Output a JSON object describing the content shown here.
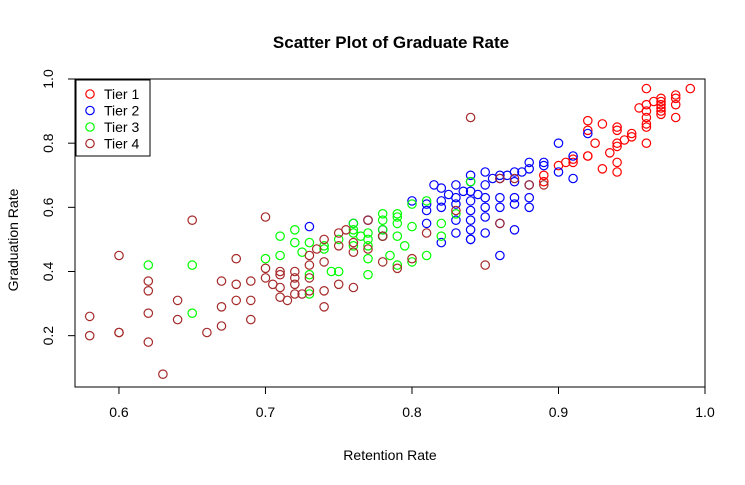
{
  "chart_data": {
    "type": "scatter",
    "title": "Scatter Plot of Graduate Rate",
    "xlabel": "Retention Rate",
    "ylabel": "Graduation Rate",
    "xlim": [
      0.57,
      1.0
    ],
    "ylim": [
      0.04,
      1.0
    ],
    "xticks": [
      "0.6",
      "0.7",
      "0.8",
      "0.9",
      "1.0"
    ],
    "yticks": [
      "0.2",
      "0.4",
      "0.6",
      "0.8",
      "1.0"
    ],
    "grid": false,
    "legend_position": "top-left",
    "series": [
      {
        "name": "Tier 1",
        "color": "#ff0000",
        "points": [
          [
            0.89,
            0.68
          ],
          [
            0.89,
            0.7
          ],
          [
            0.9,
            0.73
          ],
          [
            0.91,
            0.74
          ],
          [
            0.91,
            0.75
          ],
          [
            0.92,
            0.76
          ],
          [
            0.92,
            0.76
          ],
          [
            0.92,
            0.84
          ],
          [
            0.92,
            0.87
          ],
          [
            0.93,
            0.72
          ],
          [
            0.93,
            0.86
          ],
          [
            0.94,
            0.71
          ],
          [
            0.94,
            0.74
          ],
          [
            0.94,
            0.79
          ],
          [
            0.94,
            0.8
          ],
          [
            0.94,
            0.84
          ],
          [
            0.94,
            0.85
          ],
          [
            0.95,
            0.82
          ],
          [
            0.95,
            0.83
          ],
          [
            0.96,
            0.8
          ],
          [
            0.96,
            0.85
          ],
          [
            0.96,
            0.86
          ],
          [
            0.96,
            0.88
          ],
          [
            0.96,
            0.9
          ],
          [
            0.96,
            0.92
          ],
          [
            0.96,
            0.97
          ],
          [
            0.97,
            0.89
          ],
          [
            0.97,
            0.91
          ],
          [
            0.97,
            0.92
          ],
          [
            0.97,
            0.93
          ],
          [
            0.97,
            0.94
          ],
          [
            0.98,
            0.88
          ],
          [
            0.98,
            0.92
          ],
          [
            0.98,
            0.94
          ],
          [
            0.99,
            0.97
          ],
          [
            0.98,
            0.95
          ],
          [
            0.965,
            0.93
          ],
          [
            0.955,
            0.91
          ],
          [
            0.97,
            0.9
          ],
          [
            0.935,
            0.77
          ],
          [
            0.925,
            0.8
          ],
          [
            0.905,
            0.74
          ],
          [
            0.945,
            0.81
          ]
        ]
      },
      {
        "name": "Tier 2",
        "color": "#0000ff",
        "points": [
          [
            0.73,
            0.54
          ],
          [
            0.76,
            0.55
          ],
          [
            0.77,
            0.56
          ],
          [
            0.78,
            0.51
          ],
          [
            0.78,
            0.53
          ],
          [
            0.8,
            0.62
          ],
          [
            0.81,
            0.55
          ],
          [
            0.81,
            0.59
          ],
          [
            0.81,
            0.61
          ],
          [
            0.82,
            0.6
          ],
          [
            0.82,
            0.62
          ],
          [
            0.82,
            0.66
          ],
          [
            0.82,
            0.49
          ],
          [
            0.83,
            0.52
          ],
          [
            0.83,
            0.56
          ],
          [
            0.83,
            0.61
          ],
          [
            0.83,
            0.63
          ],
          [
            0.83,
            0.67
          ],
          [
            0.84,
            0.5
          ],
          [
            0.84,
            0.5
          ],
          [
            0.84,
            0.53
          ],
          [
            0.84,
            0.56
          ],
          [
            0.84,
            0.59
          ],
          [
            0.84,
            0.62
          ],
          [
            0.84,
            0.65
          ],
          [
            0.84,
            0.68
          ],
          [
            0.84,
            0.7
          ],
          [
            0.85,
            0.52
          ],
          [
            0.85,
            0.57
          ],
          [
            0.85,
            0.6
          ],
          [
            0.85,
            0.63
          ],
          [
            0.85,
            0.67
          ],
          [
            0.85,
            0.71
          ],
          [
            0.86,
            0.55
          ],
          [
            0.86,
            0.6
          ],
          [
            0.86,
            0.63
          ],
          [
            0.86,
            0.69
          ],
          [
            0.86,
            0.7
          ],
          [
            0.86,
            0.45
          ],
          [
            0.87,
            0.53
          ],
          [
            0.87,
            0.61
          ],
          [
            0.87,
            0.63
          ],
          [
            0.87,
            0.68
          ],
          [
            0.87,
            0.71
          ],
          [
            0.88,
            0.6
          ],
          [
            0.88,
            0.63
          ],
          [
            0.88,
            0.67
          ],
          [
            0.88,
            0.72
          ],
          [
            0.88,
            0.74
          ],
          [
            0.89,
            0.73
          ],
          [
            0.89,
            0.74
          ],
          [
            0.9,
            0.71
          ],
          [
            0.9,
            0.8
          ],
          [
            0.91,
            0.69
          ],
          [
            0.91,
            0.76
          ],
          [
            0.92,
            0.83
          ],
          [
            0.835,
            0.65
          ],
          [
            0.845,
            0.64
          ],
          [
            0.865,
            0.7
          ],
          [
            0.875,
            0.71
          ],
          [
            0.855,
            0.69
          ],
          [
            0.815,
            0.67
          ],
          [
            0.825,
            0.64
          ]
        ]
      },
      {
        "name": "Tier 3",
        "color": "#00ff00",
        "points": [
          [
            0.62,
            0.42
          ],
          [
            0.65,
            0.27
          ],
          [
            0.65,
            0.42
          ],
          [
            0.7,
            0.44
          ],
          [
            0.71,
            0.45
          ],
          [
            0.71,
            0.51
          ],
          [
            0.72,
            0.49
          ],
          [
            0.72,
            0.53
          ],
          [
            0.73,
            0.33
          ],
          [
            0.73,
            0.39
          ],
          [
            0.73,
            0.49
          ],
          [
            0.74,
            0.47
          ],
          [
            0.74,
            0.48
          ],
          [
            0.75,
            0.4
          ],
          [
            0.75,
            0.5
          ],
          [
            0.76,
            0.48
          ],
          [
            0.76,
            0.52
          ],
          [
            0.76,
            0.53
          ],
          [
            0.76,
            0.55
          ],
          [
            0.77,
            0.39
          ],
          [
            0.77,
            0.44
          ],
          [
            0.77,
            0.48
          ],
          [
            0.77,
            0.5
          ],
          [
            0.77,
            0.52
          ],
          [
            0.78,
            0.51
          ],
          [
            0.78,
            0.53
          ],
          [
            0.78,
            0.56
          ],
          [
            0.78,
            0.58
          ],
          [
            0.79,
            0.42
          ],
          [
            0.79,
            0.51
          ],
          [
            0.79,
            0.55
          ],
          [
            0.79,
            0.57
          ],
          [
            0.79,
            0.58
          ],
          [
            0.8,
            0.43
          ],
          [
            0.8,
            0.54
          ],
          [
            0.8,
            0.61
          ],
          [
            0.81,
            0.45
          ],
          [
            0.81,
            0.62
          ],
          [
            0.82,
            0.51
          ],
          [
            0.82,
            0.55
          ],
          [
            0.83,
            0.58
          ],
          [
            0.84,
            0.68
          ],
          [
            0.745,
            0.4
          ],
          [
            0.725,
            0.46
          ],
          [
            0.765,
            0.51
          ],
          [
            0.785,
            0.45
          ],
          [
            0.795,
            0.48
          ]
        ]
      },
      {
        "name": "Tier 4",
        "color": "#a52a2a",
        "points": [
          [
            0.58,
            0.26
          ],
          [
            0.58,
            0.2
          ],
          [
            0.6,
            0.21
          ],
          [
            0.6,
            0.21
          ],
          [
            0.6,
            0.45
          ],
          [
            0.62,
            0.34
          ],
          [
            0.62,
            0.37
          ],
          [
            0.62,
            0.18
          ],
          [
            0.62,
            0.27
          ],
          [
            0.63,
            0.08
          ],
          [
            0.64,
            0.31
          ],
          [
            0.64,
            0.25
          ],
          [
            0.65,
            0.56
          ],
          [
            0.66,
            0.21
          ],
          [
            0.67,
            0.23
          ],
          [
            0.67,
            0.29
          ],
          [
            0.67,
            0.37
          ],
          [
            0.68,
            0.31
          ],
          [
            0.68,
            0.36
          ],
          [
            0.68,
            0.44
          ],
          [
            0.69,
            0.25
          ],
          [
            0.69,
            0.31
          ],
          [
            0.69,
            0.37
          ],
          [
            0.7,
            0.38
          ],
          [
            0.7,
            0.41
          ],
          [
            0.7,
            0.57
          ],
          [
            0.71,
            0.32
          ],
          [
            0.71,
            0.35
          ],
          [
            0.71,
            0.39
          ],
          [
            0.71,
            0.4
          ],
          [
            0.72,
            0.33
          ],
          [
            0.72,
            0.36
          ],
          [
            0.72,
            0.38
          ],
          [
            0.72,
            0.4
          ],
          [
            0.73,
            0.34
          ],
          [
            0.73,
            0.38
          ],
          [
            0.73,
            0.42
          ],
          [
            0.73,
            0.45
          ],
          [
            0.74,
            0.29
          ],
          [
            0.74,
            0.34
          ],
          [
            0.74,
            0.43
          ],
          [
            0.74,
            0.5
          ],
          [
            0.75,
            0.36
          ],
          [
            0.75,
            0.48
          ],
          [
            0.75,
            0.52
          ],
          [
            0.76,
            0.35
          ],
          [
            0.76,
            0.46
          ],
          [
            0.76,
            0.49
          ],
          [
            0.77,
            0.47
          ],
          [
            0.77,
            0.56
          ],
          [
            0.78,
            0.43
          ],
          [
            0.78,
            0.51
          ],
          [
            0.79,
            0.41
          ],
          [
            0.8,
            0.44
          ],
          [
            0.81,
            0.52
          ],
          [
            0.83,
            0.59
          ],
          [
            0.84,
            0.88
          ],
          [
            0.85,
            0.42
          ],
          [
            0.86,
            0.55
          ],
          [
            0.86,
            0.69
          ],
          [
            0.87,
            0.69
          ],
          [
            0.88,
            0.67
          ],
          [
            0.89,
            0.67
          ],
          [
            0.715,
            0.31
          ],
          [
            0.725,
            0.33
          ],
          [
            0.705,
            0.36
          ],
          [
            0.735,
            0.47
          ],
          [
            0.755,
            0.53
          ]
        ]
      }
    ]
  }
}
